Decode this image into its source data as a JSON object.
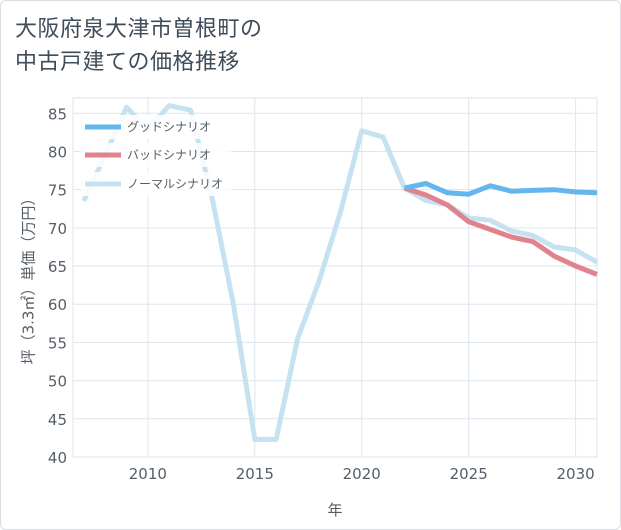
{
  "title": {
    "line1": "大阪府泉大津市曽根町の",
    "line2": "中古戸建ての価格推移"
  },
  "chart_data": {
    "type": "line",
    "title": "大阪府泉大津市曽根町の中古戸建ての価格推移",
    "xlabel": "年",
    "ylabel": "坪（3.3㎡）単価（万円）",
    "xlim": [
      2006.5,
      2031
    ],
    "ylim": [
      40,
      87
    ],
    "xticks": [
      2010,
      2015,
      2020,
      2025,
      2030
    ],
    "yticks": [
      40,
      45,
      50,
      55,
      60,
      65,
      70,
      75,
      80,
      85
    ],
    "grid": true,
    "legend_position": "top-left",
    "series": [
      {
        "name": "グッドシナリオ",
        "color": "#63b6ee",
        "points": [
          [
            2022,
            75.2
          ],
          [
            2023,
            75.8
          ],
          [
            2024,
            74.6
          ],
          [
            2025,
            74.4
          ],
          [
            2026,
            75.5
          ],
          [
            2027,
            74.8
          ],
          [
            2028,
            74.9
          ],
          [
            2029,
            75.0
          ],
          [
            2030,
            74.7
          ],
          [
            2031,
            74.6
          ]
        ]
      },
      {
        "name": "バッドシナリオ",
        "color": "#e0838f",
        "points": [
          [
            2022,
            75.2
          ],
          [
            2023,
            74.3
          ],
          [
            2024,
            73.0
          ],
          [
            2025,
            70.8
          ],
          [
            2026,
            69.8
          ],
          [
            2027,
            68.8
          ],
          [
            2028,
            68.2
          ],
          [
            2029,
            66.3
          ],
          [
            2030,
            65.0
          ],
          [
            2031,
            63.9
          ]
        ]
      },
      {
        "name": "ノーマルシナリオ",
        "color": "#c6e2f1",
        "points": [
          [
            2007,
            73.5
          ],
          [
            2008,
            79.5
          ],
          [
            2009,
            85.8
          ],
          [
            2010,
            82.9
          ],
          [
            2011,
            86.0
          ],
          [
            2012,
            85.4
          ],
          [
            2013,
            74.0
          ],
          [
            2014,
            60.0
          ],
          [
            2015,
            42.3
          ],
          [
            2016,
            42.3
          ],
          [
            2017,
            55.5
          ],
          [
            2018,
            63.0
          ],
          [
            2019,
            72.0
          ],
          [
            2020,
            82.7
          ],
          [
            2021,
            81.9
          ],
          [
            2022,
            75.2
          ],
          [
            2023,
            73.6
          ],
          [
            2024,
            73.0
          ],
          [
            2025,
            71.3
          ],
          [
            2026,
            71.0
          ],
          [
            2027,
            69.6
          ],
          [
            2028,
            69.0
          ],
          [
            2029,
            67.5
          ],
          [
            2030,
            67.1
          ],
          [
            2031,
            65.5
          ]
        ]
      }
    ]
  }
}
